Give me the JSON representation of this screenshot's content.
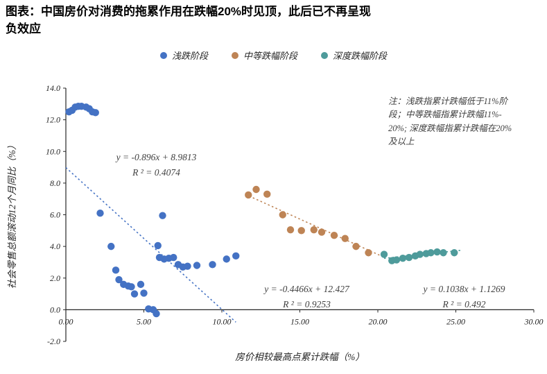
{
  "title": {
    "line1": "图表：中国房价对消费的拖累作用在跌幅20%时见顶，此后已不再呈现",
    "line2": "负效应"
  },
  "note": {
    "lines": [
      "注：浅跌指累计跌幅低于11%阶",
      "段；中等跌幅指累计跌幅11%-",
      "20%; 深度跌幅指累计跌幅在20%",
      "及以上"
    ]
  },
  "chart_data": {
    "type": "scatter",
    "title": "图表：中国房价对消费的拖累作用在跌幅20%时见顶，此后已不再呈现负效应",
    "xlabel": "房价相较最高点累计跌幅（%）",
    "ylabel": "社会零售总额滚动12个月同比（%）",
    "xlim": [
      0,
      30
    ],
    "ylim": [
      -2,
      14
    ],
    "xticks": [
      0,
      5,
      10,
      15,
      20,
      25,
      30
    ],
    "xtick_labels": [
      "0.00",
      "5.00",
      "10.00",
      "15.00",
      "20.00",
      "25.00",
      "30.00"
    ],
    "yticks": [
      14,
      12,
      10,
      8,
      6,
      4,
      2,
      0,
      -2
    ],
    "ytick_labels": [
      "14.0",
      "12.0",
      "10.0",
      "8.0",
      "6.0",
      "4.0",
      "2.0",
      "0.0",
      "-2.0"
    ],
    "grid": false,
    "legend_position": "top",
    "series": [
      {
        "key": "shallow",
        "name": "浅跌阶段",
        "color": "#4472C4",
        "points": [
          [
            0.2,
            12.5
          ],
          [
            0.4,
            12.6
          ],
          [
            0.6,
            12.8
          ],
          [
            0.8,
            12.85
          ],
          [
            1.0,
            12.85
          ],
          [
            1.3,
            12.8
          ],
          [
            1.5,
            12.7
          ],
          [
            1.7,
            12.5
          ],
          [
            1.9,
            12.45
          ],
          [
            2.2,
            6.1
          ],
          [
            2.9,
            4.0
          ],
          [
            3.2,
            2.5
          ],
          [
            3.4,
            1.9
          ],
          [
            3.7,
            1.6
          ],
          [
            4.0,
            1.5
          ],
          [
            4.2,
            1.45
          ],
          [
            4.4,
            1.0
          ],
          [
            4.8,
            1.6
          ],
          [
            5.0,
            1.05
          ],
          [
            5.3,
            0.05
          ],
          [
            5.6,
            0.0
          ],
          [
            5.8,
            -0.25
          ],
          [
            5.9,
            4.05
          ],
          [
            6.2,
            5.95
          ],
          [
            6.0,
            3.3
          ],
          [
            6.3,
            3.2
          ],
          [
            6.6,
            3.25
          ],
          [
            6.9,
            3.3
          ],
          [
            7.2,
            2.85
          ],
          [
            7.5,
            2.7
          ],
          [
            7.8,
            2.75
          ],
          [
            8.4,
            2.8
          ],
          [
            9.4,
            2.85
          ],
          [
            10.3,
            3.2
          ],
          [
            10.9,
            3.4
          ]
        ],
        "trend": {
          "equation": "y = -0.896x + 8.9813",
          "r2": "R ² = 0.4074",
          "slope": -0.896,
          "intercept": 8.9813,
          "x_range": [
            0,
            10.9
          ]
        }
      },
      {
        "key": "medium",
        "name": "中等跌幅阶段",
        "color": "#BE8455",
        "points": [
          [
            11.7,
            7.25
          ],
          [
            12.2,
            7.6
          ],
          [
            12.9,
            7.3
          ],
          [
            13.9,
            6.0
          ],
          [
            14.4,
            5.05
          ],
          [
            15.1,
            5.0
          ],
          [
            15.9,
            5.05
          ],
          [
            16.4,
            4.9
          ],
          [
            17.2,
            4.7
          ],
          [
            17.9,
            4.5
          ],
          [
            18.6,
            4.0
          ],
          [
            19.4,
            3.6
          ]
        ],
        "trend": {
          "equation": "y = -0.4466x + 12.427",
          "r2": "R ² = 0.9253",
          "slope": -0.4466,
          "intercept": 12.427,
          "x_range": [
            11.5,
            20.2
          ]
        }
      },
      {
        "key": "deep",
        "name": "深度跌幅阶段",
        "color": "#4E9B9B",
        "points": [
          [
            20.4,
            3.5
          ],
          [
            20.9,
            3.1
          ],
          [
            21.2,
            3.15
          ],
          [
            21.6,
            3.25
          ],
          [
            22.0,
            3.3
          ],
          [
            22.4,
            3.4
          ],
          [
            22.7,
            3.5
          ],
          [
            23.1,
            3.55
          ],
          [
            23.4,
            3.6
          ],
          [
            23.8,
            3.65
          ],
          [
            24.2,
            3.6
          ],
          [
            24.9,
            3.6
          ]
        ],
        "trend": {
          "equation": "y = 0.1038x + 1.1269",
          "r2": "R ² = 0.492",
          "slope": 0.1038,
          "intercept": 1.1269,
          "x_range": [
            20.4,
            25.3
          ]
        }
      }
    ]
  }
}
